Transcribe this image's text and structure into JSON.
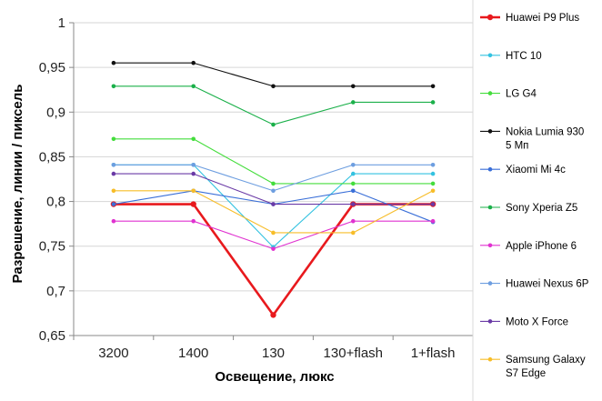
{
  "chart_data": {
    "type": "line",
    "xlabel": "Освещение,  люкс",
    "ylabel": "Разрешение,  линии / пиксель",
    "categories": [
      "3200",
      "1400",
      "130",
      "130+flash",
      "1+flash"
    ],
    "ylim": [
      0.65,
      1.0
    ],
    "yticks": [
      "0,65",
      "0,7",
      "0,75",
      "0,8",
      "0,85",
      "0,9",
      "0,95",
      "1"
    ],
    "grid": "horizontal",
    "legend_position": "right",
    "series": [
      {
        "name": "Huawei P9 Plus",
        "color": "#e8191d",
        "bold": true,
        "values": [
          0.797,
          0.797,
          0.673,
          0.797,
          0.797
        ]
      },
      {
        "name": "HTC 10",
        "color": "#33c2e0",
        "values": [
          0.841,
          0.841,
          0.749,
          0.831,
          0.831
        ]
      },
      {
        "name": "LG G4",
        "color": "#44dd3c",
        "values": [
          0.87,
          0.87,
          0.82,
          0.82,
          0.82
        ]
      },
      {
        "name": "Nokia Lumia 930 5 Мп",
        "color": "#111111",
        "values": [
          0.955,
          0.955,
          0.929,
          0.929,
          0.929
        ]
      },
      {
        "name": "Xiaomi Mi 4c",
        "color": "#3a6fd8",
        "values": [
          0.797,
          0.812,
          0.797,
          0.812,
          0.777
        ]
      },
      {
        "name": "Sony Xperia Z5",
        "color": "#1bb04a",
        "values": [
          0.929,
          0.929,
          0.886,
          0.911,
          0.911
        ]
      },
      {
        "name": "Apple iPhone 6",
        "color": "#e032d0",
        "values": [
          0.778,
          0.778,
          0.747,
          0.778,
          0.778
        ]
      },
      {
        "name": "Huawei Nexus 6P",
        "color": "#6d9ee0",
        "values": [
          0.841,
          0.841,
          0.812,
          0.841,
          0.841
        ]
      },
      {
        "name": "Moto X Force",
        "color": "#6a3aa6",
        "values": [
          0.831,
          0.831,
          0.797,
          0.797,
          0.797
        ]
      },
      {
        "name": "Samsung Galaxy S7 Edge",
        "color": "#f7bd29",
        "values": [
          0.812,
          0.812,
          0.765,
          0.765,
          0.812
        ]
      }
    ]
  }
}
